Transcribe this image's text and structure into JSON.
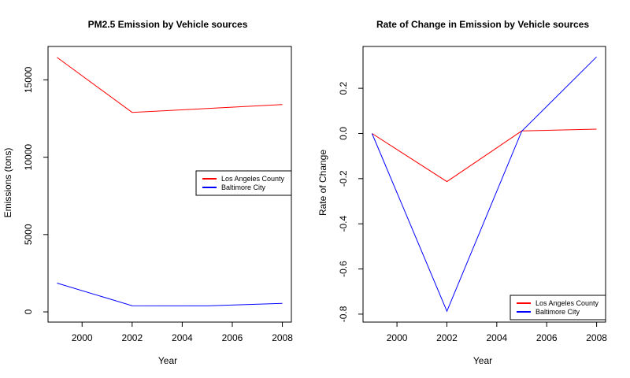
{
  "chart_data": [
    {
      "type": "line",
      "title": "PM2.5 Emission by Vehicle sources",
      "xlabel": "Year",
      "ylabel": "Emissions (tons)",
      "x": [
        1999,
        2002,
        2005,
        2008
      ],
      "xlim": [
        1999,
        2008
      ],
      "ylim": [
        0,
        16500
      ],
      "xticks": [
        2000,
        2002,
        2004,
        2006,
        2008
      ],
      "yticks": [
        0,
        5000,
        10000,
        15000
      ],
      "legend_position": "right",
      "series": [
        {
          "name": "Los Angeles County",
          "color": "#ff0000",
          "values": [
            16450,
            12900,
            13150,
            13400
          ]
        },
        {
          "name": "Baltimore City",
          "color": "#0000ff",
          "values": [
            1860,
            400,
            390,
            550
          ]
        }
      ]
    },
    {
      "type": "line",
      "title": "Rate of Change in Emission by Vehicle sources",
      "xlabel": "Year",
      "ylabel": "Rate of Change",
      "x": [
        1999,
        2002,
        2005,
        2008
      ],
      "xlim": [
        1999,
        2008
      ],
      "ylim": [
        -0.79,
        0.34
      ],
      "xticks": [
        2000,
        2002,
        2004,
        2006,
        2008
      ],
      "yticks": [
        -0.8,
        -0.6,
        -0.4,
        -0.2,
        0.0,
        0.2
      ],
      "ytick_labels": [
        "-0.8",
        "-0.6",
        "-0.4",
        "-0.2",
        "0.0",
        "0.2"
      ],
      "legend_position": "bottom-right",
      "series": [
        {
          "name": "Los Angeles County",
          "color": "#ff0000",
          "values": [
            0.0,
            -0.213,
            0.011,
            0.019
          ]
        },
        {
          "name": "Baltimore City",
          "color": "#0000ff",
          "values": [
            0.0,
            -0.787,
            0.01,
            0.339
          ]
        }
      ]
    }
  ]
}
